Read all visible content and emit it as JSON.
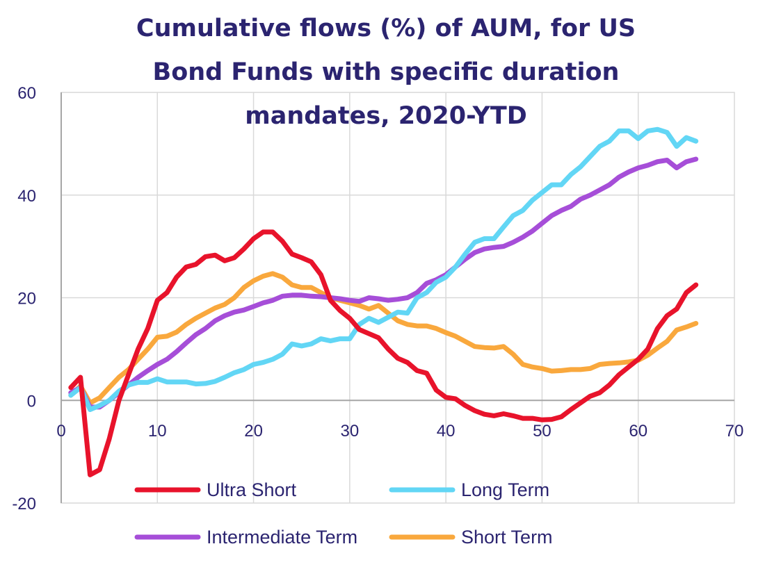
{
  "chart_data": {
    "type": "line",
    "title_lines": [
      "Cumulative flows (%) of AUM, for US",
      "Bond Funds with specific duration",
      "mandates, 2020-YTD"
    ],
    "xlabel": "",
    "ylabel": "",
    "xlim": [
      0,
      70
    ],
    "ylim": [
      -20,
      60
    ],
    "x_ticks": [
      0,
      10,
      20,
      30,
      40,
      50,
      60,
      70
    ],
    "y_ticks": [
      -20,
      0,
      20,
      40,
      60
    ],
    "grid": true,
    "legend_position": "bottom",
    "series": [
      {
        "name": "Ultra Short",
        "color": "#e8132b",
        "x": [
          1,
          2,
          3,
          4,
          5,
          6,
          7,
          8,
          9,
          10,
          11,
          12,
          13,
          14,
          15,
          16,
          17,
          18,
          19,
          20,
          21,
          22,
          23,
          24,
          25,
          26,
          27,
          28,
          29,
          30,
          31,
          32,
          33,
          34,
          35,
          36,
          37,
          38,
          39,
          40,
          41,
          42,
          43,
          44,
          45,
          46,
          47,
          48,
          49,
          50,
          51,
          52,
          53,
          54,
          55,
          56,
          57,
          58,
          59,
          60,
          61,
          62,
          63,
          64,
          65,
          66
        ],
        "y": [
          2.5,
          4.5,
          -14.5,
          -13.5,
          -7.5,
          0,
          5,
          10,
          14,
          19.5,
          21,
          24,
          26,
          26.5,
          28,
          28.3,
          27.2,
          27.8,
          29.5,
          31.5,
          32.8,
          32.8,
          31,
          28.5,
          27.8,
          27,
          24.5,
          19.5,
          17.5,
          16,
          13.8,
          13,
          12.2,
          10,
          8.2,
          7.4,
          5.8,
          5.3,
          2,
          0.6,
          0.3,
          -1,
          -2,
          -2.7,
          -3,
          -2.6,
          -3,
          -3.5,
          -3.5,
          -3.8,
          -3.7,
          -3.2,
          -1.8,
          -0.5,
          0.8,
          1.5,
          3,
          5,
          6.5,
          8,
          10,
          14,
          16.5,
          17.8,
          21,
          22.5
        ]
      },
      {
        "name": "Long Term",
        "color": "#62d6f5",
        "x": [
          1,
          2,
          3,
          4,
          5,
          6,
          7,
          8,
          9,
          10,
          11,
          12,
          13,
          14,
          15,
          16,
          17,
          18,
          19,
          20,
          21,
          22,
          23,
          24,
          25,
          26,
          27,
          28,
          29,
          30,
          31,
          32,
          33,
          34,
          35,
          36,
          37,
          38,
          39,
          40,
          41,
          42,
          43,
          44,
          45,
          46,
          47,
          48,
          49,
          50,
          51,
          52,
          53,
          54,
          55,
          56,
          57,
          58,
          59,
          60,
          61,
          62,
          63,
          64,
          65,
          66
        ],
        "y": [
          1,
          2.5,
          -1.8,
          -1,
          0,
          1.8,
          3,
          3.5,
          3.5,
          4.2,
          3.6,
          3.6,
          3.6,
          3.2,
          3.3,
          3.7,
          4.5,
          5.4,
          6,
          7,
          7.4,
          8,
          9,
          11,
          10.6,
          11,
          12,
          11.6,
          12,
          12,
          14.8,
          16,
          15.2,
          16.2,
          17.2,
          17,
          20,
          21,
          23,
          24,
          26,
          28.5,
          30.8,
          31.5,
          31.5,
          33.8,
          36,
          37,
          39,
          40.5,
          42,
          42,
          44,
          45.5,
          47.5,
          49.5,
          50.5,
          52.5,
          52.5,
          51,
          52.5,
          52.8,
          52.2,
          49.5,
          51.2,
          50.5
        ]
      },
      {
        "name": "Intermediate Term",
        "color": "#a64ed8",
        "x": [
          1,
          2,
          3,
          4,
          5,
          6,
          7,
          8,
          9,
          10,
          11,
          12,
          13,
          14,
          15,
          16,
          17,
          18,
          19,
          20,
          21,
          22,
          23,
          24,
          25,
          26,
          27,
          28,
          29,
          30,
          31,
          32,
          33,
          34,
          35,
          36,
          37,
          38,
          39,
          40,
          41,
          42,
          43,
          44,
          45,
          46,
          47,
          48,
          49,
          50,
          51,
          52,
          53,
          54,
          55,
          56,
          57,
          58,
          59,
          60,
          61,
          62,
          63,
          64,
          65,
          66
        ],
        "y": [
          1.5,
          2.5,
          -1.3,
          -1.3,
          0,
          1.5,
          3,
          4.5,
          5.8,
          7,
          8,
          9.5,
          11.2,
          12.8,
          14,
          15.5,
          16.5,
          17.2,
          17.6,
          18.3,
          19,
          19.5,
          20.3,
          20.5,
          20.5,
          20.3,
          20.2,
          20,
          19.8,
          19.5,
          19.3,
          20,
          19.8,
          19.5,
          19.7,
          20,
          21,
          22.8,
          23.5,
          24.5,
          26,
          27.5,
          28.8,
          29.5,
          29.8,
          30,
          30.8,
          31.8,
          33,
          34.5,
          36,
          37,
          37.8,
          39.2,
          40,
          41,
          42,
          43.5,
          44.5,
          45.3,
          45.8,
          46.5,
          46.8,
          45.3,
          46.5,
          47
        ]
      },
      {
        "name": "Short Term",
        "color": "#f9a83d",
        "x": [
          1,
          2,
          3,
          4,
          5,
          6,
          7,
          8,
          9,
          10,
          11,
          12,
          13,
          14,
          15,
          16,
          17,
          18,
          19,
          20,
          21,
          22,
          23,
          24,
          25,
          26,
          27,
          28,
          29,
          30,
          31,
          32,
          33,
          34,
          35,
          36,
          37,
          38,
          39,
          40,
          41,
          42,
          43,
          44,
          45,
          46,
          47,
          48,
          49,
          50,
          51,
          52,
          53,
          54,
          55,
          56,
          57,
          58,
          59,
          60,
          61,
          62,
          63,
          64,
          65,
          66
        ],
        "y": [
          1,
          2.8,
          -0.5,
          0.5,
          2.5,
          4.5,
          6,
          8,
          10,
          12.3,
          12.5,
          13.3,
          14.8,
          16,
          17,
          18,
          18.7,
          20,
          22,
          23.3,
          24.2,
          24.7,
          24,
          22.5,
          22,
          22,
          21,
          20,
          19.5,
          19,
          18.5,
          17.8,
          18.5,
          17,
          15.5,
          14.8,
          14.5,
          14.5,
          14,
          13.2,
          12.5,
          11.5,
          10.5,
          10.3,
          10.2,
          10.5,
          9,
          7,
          6.5,
          6.2,
          5.7,
          5.8,
          6,
          6,
          6.2,
          7,
          7.2,
          7.3,
          7.5,
          7.8,
          8.8,
          10.2,
          11.5,
          13.7,
          14.3,
          15
        ]
      }
    ]
  }
}
